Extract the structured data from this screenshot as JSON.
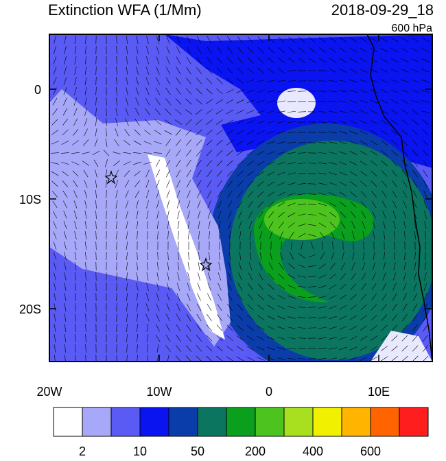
{
  "header": {
    "title": "Extinction WFA (1/Mm)",
    "time": "2018-09-29_18",
    "level": "600 hPa"
  },
  "map": {
    "lat_ticks": [
      {
        "value": 0,
        "label": "0"
      },
      {
        "value": -10,
        "label": "10S"
      },
      {
        "value": -20,
        "label": "20S"
      }
    ],
    "lon_ticks": [
      {
        "value": -20,
        "label": "20W"
      },
      {
        "value": -10,
        "label": "10W"
      },
      {
        "value": 0,
        "label": "0"
      },
      {
        "value": 10,
        "label": "10E"
      }
    ]
  },
  "colorbar": {
    "colors": [
      "#ffffff",
      "#a8a8f8",
      "#5a5af5",
      "#0a14f0",
      "#0a3caa",
      "#0b7560",
      "#0aa01e",
      "#4cc31e",
      "#a8e020",
      "#f0f000",
      "#ffb400",
      "#ff6400",
      "#ff1e1e"
    ],
    "labels": [
      "2",
      "10",
      "50",
      "200",
      "400",
      "600"
    ]
  }
}
